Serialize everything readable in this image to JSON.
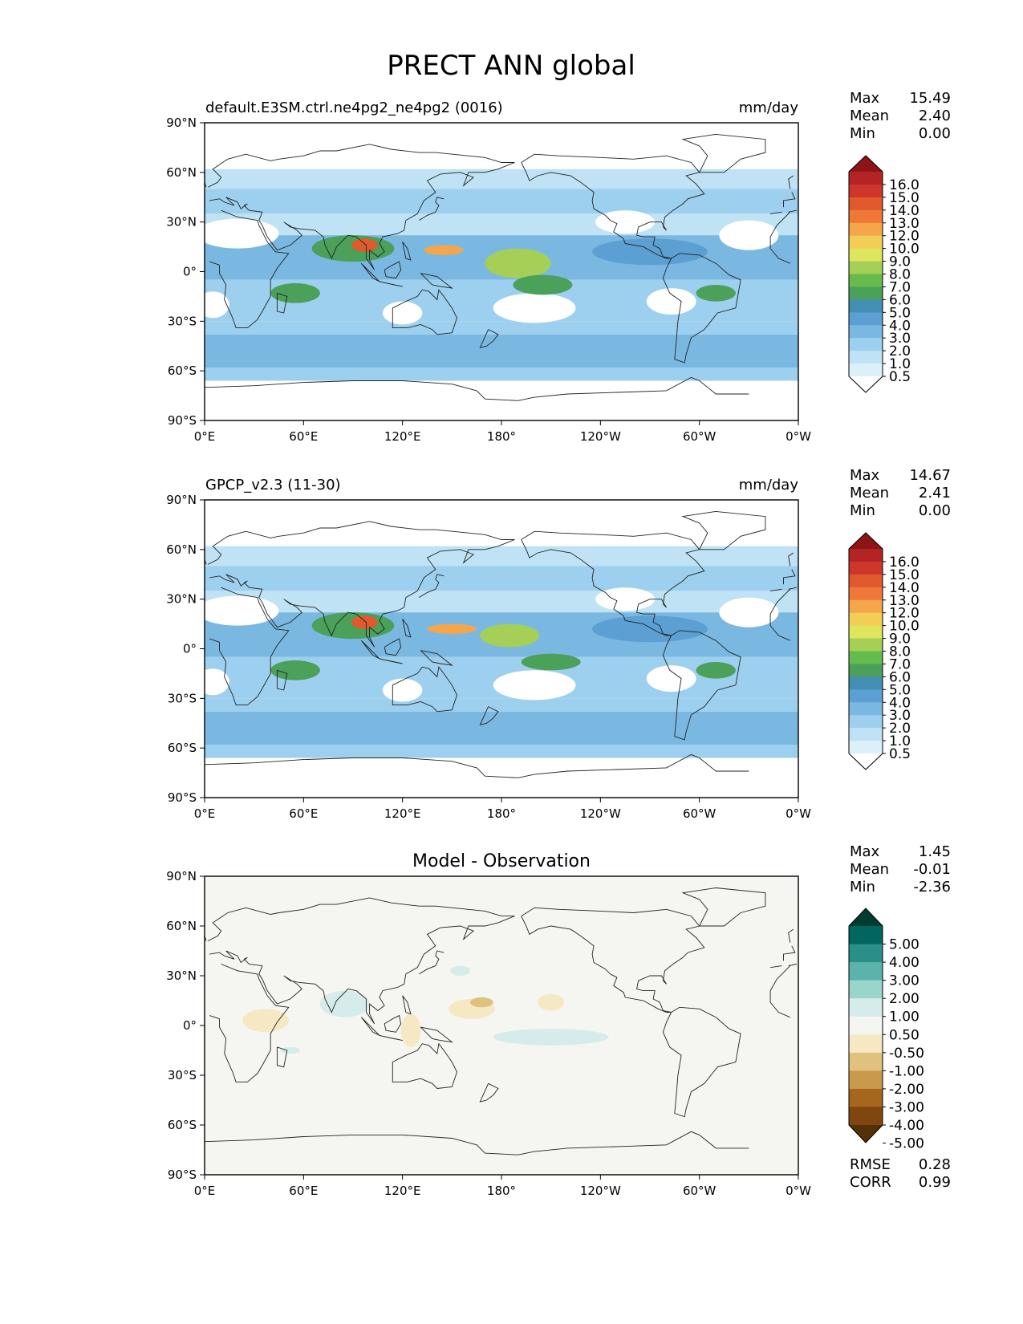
{
  "figure_title": "PRECT ANN global",
  "colors": {
    "precip_levels": [
      "#ffffff",
      "#dcf0fa",
      "#bfe2f5",
      "#9dd0ee",
      "#7ab8e2",
      "#5c9fd3",
      "#4490b4",
      "#4ba05a",
      "#66bb4e",
      "#a5cf56",
      "#dde65c",
      "#f2ce56",
      "#f5a64a",
      "#ef7737",
      "#e05a2e",
      "#cc362b",
      "#b42424",
      "#8e1515"
    ],
    "diff_levels": [
      "#543005",
      "#7f470f",
      "#a7661e",
      "#c99a4b",
      "#dfc27d",
      "#f6e8c3",
      "#f5f5f1",
      "#d6ecea",
      "#99d5cb",
      "#5ab4ac",
      "#2a8f87",
      "#01665e",
      "#003c30"
    ]
  },
  "chart_data": [
    {
      "type": "heatmap",
      "title": "default.E3SM.ctrl.ne4pg2_ne4pg2 (0016)",
      "units": "mm/day",
      "x_ticks": [
        "0°E",
        "60°E",
        "120°E",
        "180°",
        "120°W",
        "60°W",
        "0°W"
      ],
      "y_ticks": [
        "90°N",
        "60°N",
        "30°N",
        "0°",
        "30°S",
        "60°S",
        "90°S"
      ],
      "xlim": [
        0,
        360
      ],
      "ylim": [
        -90,
        90
      ],
      "stats": [
        {
          "label": "Max",
          "value": "15.49"
        },
        {
          "label": "Mean",
          "value": "2.40"
        },
        {
          "label": "Min",
          "value": "0.00"
        }
      ],
      "colorbar_labels": [
        "16.0",
        "15.0",
        "14.0",
        "13.0",
        "12.0",
        "10.0",
        "9.0",
        "8.0",
        "7.0",
        "6.0",
        "5.0",
        "4.0",
        "3.0",
        "2.0",
        "1.0",
        "0.5"
      ],
      "features": [
        {
          "lon": 160,
          "lat": 8,
          "rx": 60,
          "ry": 7,
          "v": 3
        },
        {
          "lon": 90,
          "lat": 14,
          "rx": 25,
          "ry": 8,
          "v": 6
        },
        {
          "lon": 97,
          "lat": 16,
          "rx": 8,
          "ry": 4,
          "v": 14
        },
        {
          "lon": 145,
          "lat": 13,
          "rx": 12,
          "ry": 3,
          "v": 12
        },
        {
          "lon": 190,
          "lat": 5,
          "rx": 20,
          "ry": 9,
          "v": 8
        },
        {
          "lon": 205,
          "lat": -8,
          "rx": 18,
          "ry": 6,
          "v": 6
        },
        {
          "lon": 55,
          "lat": -13,
          "rx": 15,
          "ry": 6,
          "v": 6
        },
        {
          "lon": 310,
          "lat": -13,
          "rx": 12,
          "ry": 5,
          "v": 6
        },
        {
          "lon": 270,
          "lat": 12,
          "rx": 35,
          "ry": 8,
          "v": 4
        }
      ]
    },
    {
      "type": "heatmap",
      "title": "GPCP_v2.3 (11-30)",
      "units": "mm/day",
      "x_ticks": [
        "0°E",
        "60°E",
        "120°E",
        "180°",
        "120°W",
        "60°W",
        "0°W"
      ],
      "y_ticks": [
        "90°N",
        "60°N",
        "30°N",
        "0°",
        "30°S",
        "60°S",
        "90°S"
      ],
      "xlim": [
        0,
        360
      ],
      "ylim": [
        -90,
        90
      ],
      "stats": [
        {
          "label": "Max",
          "value": "14.67"
        },
        {
          "label": "Mean",
          "value": "2.41"
        },
        {
          "label": "Min",
          "value": "0.00"
        }
      ],
      "colorbar_labels": [
        "16.0",
        "15.0",
        "14.0",
        "13.0",
        "12.0",
        "10.0",
        "9.0",
        "8.0",
        "7.0",
        "6.0",
        "5.0",
        "4.0",
        "3.0",
        "2.0",
        "1.0",
        "0.5"
      ],
      "features": [
        {
          "lon": 160,
          "lat": 8,
          "rx": 60,
          "ry": 7,
          "v": 3
        },
        {
          "lon": 90,
          "lat": 14,
          "rx": 25,
          "ry": 8,
          "v": 6
        },
        {
          "lon": 97,
          "lat": 16,
          "rx": 8,
          "ry": 4,
          "v": 14
        },
        {
          "lon": 150,
          "lat": 12,
          "rx": 15,
          "ry": 3,
          "v": 12
        },
        {
          "lon": 185,
          "lat": 8,
          "rx": 18,
          "ry": 7,
          "v": 8
        },
        {
          "lon": 210,
          "lat": -8,
          "rx": 18,
          "ry": 5,
          "v": 6
        },
        {
          "lon": 55,
          "lat": -13,
          "rx": 15,
          "ry": 6,
          "v": 6
        },
        {
          "lon": 310,
          "lat": -13,
          "rx": 12,
          "ry": 5,
          "v": 6
        },
        {
          "lon": 270,
          "lat": 12,
          "rx": 35,
          "ry": 8,
          "v": 4
        }
      ]
    },
    {
      "type": "heatmap",
      "title": "Model - Observation",
      "units": "",
      "x_ticks": [
        "0°E",
        "60°E",
        "120°E",
        "180°",
        "120°W",
        "60°W",
        "0°W"
      ],
      "y_ticks": [
        "90°N",
        "60°N",
        "30°N",
        "0°",
        "30°S",
        "60°S",
        "90°S"
      ],
      "xlim": [
        0,
        360
      ],
      "ylim": [
        -90,
        90
      ],
      "stats": [
        {
          "label": "Max",
          "value": "1.45"
        },
        {
          "label": "Mean",
          "value": "-0.01"
        },
        {
          "label": "Min",
          "value": "-2.36"
        }
      ],
      "colorbar_labels": [
        "5.00",
        "4.00",
        "3.00",
        "2.00",
        "1.00",
        "0.50",
        "-0.50",
        "-1.00",
        "-2.00",
        "-3.00",
        "-4.00",
        "-5.00"
      ],
      "footer_stats": [
        {
          "label": "RMSE",
          "value": "0.28"
        },
        {
          "label": "CORR",
          "value": "0.99"
        }
      ],
      "features": [
        {
          "lon": 37,
          "lat": 3,
          "rx": 14,
          "ry": 7,
          "v": -0.7
        },
        {
          "lon": 162,
          "lat": 10,
          "rx": 14,
          "ry": 6,
          "v": -0.7
        },
        {
          "lon": 168,
          "lat": 14,
          "rx": 7,
          "ry": 3,
          "v": -1.5
        },
        {
          "lon": 125,
          "lat": -3,
          "rx": 6,
          "ry": 10,
          "v": -0.7
        },
        {
          "lon": 210,
          "lat": 14,
          "rx": 8,
          "ry": 5,
          "v": -0.7
        },
        {
          "lon": 85,
          "lat": 13,
          "rx": 15,
          "ry": 8,
          "v": 0.7
        },
        {
          "lon": 155,
          "lat": 33,
          "rx": 6,
          "ry": 3,
          "v": 0.7
        },
        {
          "lon": 210,
          "lat": -7,
          "rx": 35,
          "ry": 5,
          "v": 0.7
        },
        {
          "lon": 52,
          "lat": -15,
          "rx": 6,
          "ry": 2,
          "v": 0.7
        }
      ]
    }
  ]
}
